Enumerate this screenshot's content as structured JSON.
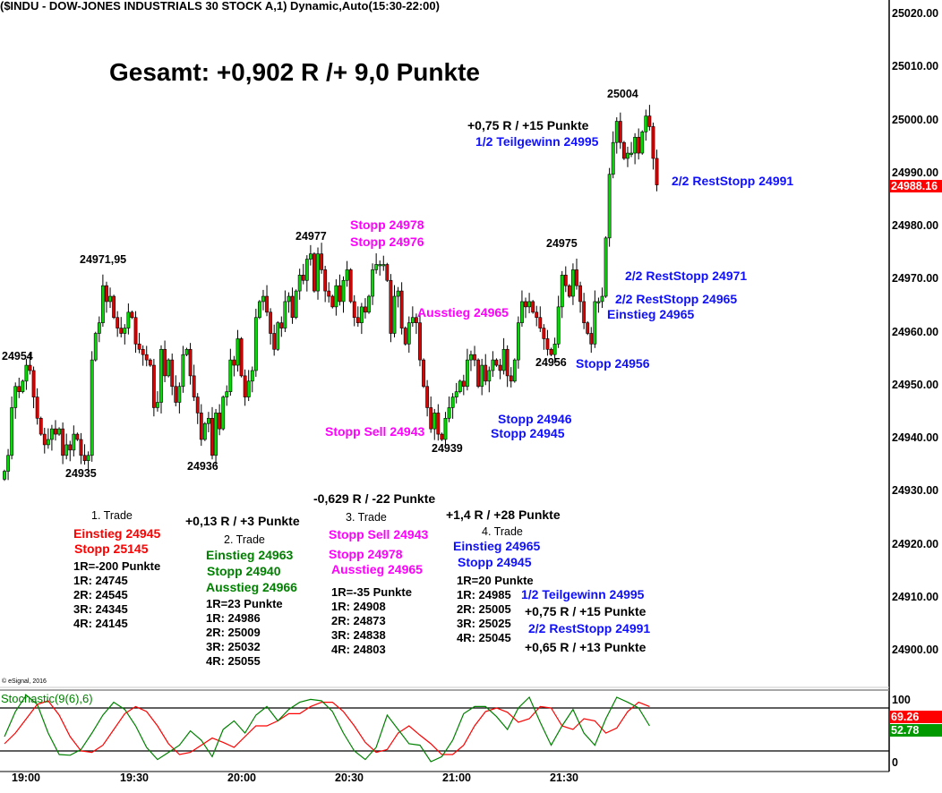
{
  "header": {
    "title": "($INDU - DOW-JONES INDUSTRIALS 30 STOCK A,1) Dynamic,Auto(15:30-22:00)"
  },
  "summary": "Gesamt: +0,902 R /+ 9,0 Punkte",
  "copyright": "© eSignal, 2016",
  "colors": {
    "up": "#00dd00",
    "down": "#e00000",
    "stoch_k": "#008000",
    "stoch_d": "#ff0000",
    "last_price_bg": "#ff0000",
    "k_badge_bg": "#009900"
  },
  "chart_labels": {
    "l24954": "24954",
    "l24935": "24935",
    "l24971": "24971,95",
    "l24936": "24936",
    "l24977": "24977",
    "stopp24978": "Stopp 24978",
    "stopp24976": "Stopp 24976",
    "ausstieg24965": "Ausstieg 24965",
    "stoppsell24943": "Stopp Sell 24943",
    "l24939": "24939",
    "stopp24946": "Stopp 24946",
    "stopp24945": "Stopp 24945",
    "l24956": "24956",
    "stopp24956": "Stopp 24956",
    "l24975": "24975",
    "einstieg24965": "Einstieg 24965",
    "rest24965": "2/2 RestStopp 24965",
    "rest24971": "2/2 RestStopp 24971",
    "rest24991": "2/2 RestStopp 24991",
    "l25004": "25004",
    "r075": "+0,75 R / +15 Punkte",
    "teil24995": "1/2 Teilgewinn 24995"
  },
  "trades": [
    {
      "title": "1. Trade",
      "result": "",
      "lines": [
        "Einstieg 24945",
        "Stopp 25145"
      ],
      "risk": "1R=-200 Punkte",
      "targets": [
        "1R: 24745",
        "2R: 24545",
        "3R: 24345",
        "4R: 24145"
      ]
    },
    {
      "title": "2. Trade",
      "result": "+0,13 R / +3 Punkte",
      "lines": [
        "Einstieg 24963",
        "Stopp 24940",
        "Ausstieg 24966"
      ],
      "risk": "1R=23 Punkte",
      "targets": [
        "1R: 24986",
        "2R: 25009",
        "3R: 25032",
        "4R: 25055"
      ]
    },
    {
      "title": "3. Trade",
      "result": "-0,629 R / -22 Punkte",
      "lines": [
        "Stopp Sell 24943",
        "Stopp 24978",
        "Ausstieg 24965"
      ],
      "risk": "1R=-35 Punkte",
      "targets": [
        "1R: 24908",
        "2R: 24873",
        "3R: 24838",
        "4R: 24803"
      ]
    },
    {
      "title": "4. Trade",
      "result": "+1,4 R / +28 Punkte",
      "lines": [
        "Einstieg 24965",
        "Stopp 24945"
      ],
      "risk": "1R=20 Punkte",
      "targets": [
        "1R: 24985",
        "2R: 25005",
        "3R: 25025",
        "4R: 25045"
      ],
      "exits": [
        "1/2 Teilgewinn 24995",
        "+0,75 R / +15 Punkte",
        "2/2 RestStopp 24991",
        "+0,65 R / +13 Punkte"
      ]
    }
  ],
  "chart_data": [
    {
      "type": "candlestick",
      "title": "($INDU - DOW-JONES INDUSTRIALS 30 STOCK A,1) Dynamic,Auto(15:30-22:00)",
      "interval_min": 1,
      "first_bar_time": "18:54",
      "x_ticks": [
        "19:00",
        "19:30",
        "20:00",
        "20:30",
        "21:00",
        "21:30"
      ],
      "y_ticks": [
        "25020.00",
        "25010.00",
        "25000.00",
        "24990.00",
        "24980.00",
        "24970.00",
        "24960.00",
        "24950.00",
        "24940.00",
        "24930.00",
        "24920.00",
        "24910.00",
        "24900.00"
      ],
      "ylim": [
        24899,
        25023
      ],
      "last_price": "24988.16",
      "closes": [
        24934,
        24937,
        24946,
        24950,
        24949,
        24951,
        24954,
        24953,
        24948,
        24944,
        24941,
        24939,
        24940,
        24942,
        24941,
        24942,
        24937,
        24939,
        24938,
        24941,
        24940,
        24937,
        24936,
        24937,
        24955,
        24960,
        24962,
        24969,
        24966,
        24967,
        24963,
        24961,
        24960,
        24961,
        24964,
        24963,
        24958,
        24957,
        24956,
        24955,
        24954,
        24946,
        24947,
        24957,
        24952,
        24955,
        24950,
        24947,
        24950,
        24956,
        24957,
        24952,
        24948,
        24945,
        24940,
        24943,
        24944,
        24937,
        24945,
        24942,
        24948,
        24949,
        24955,
        24954,
        24959,
        24952,
        24948,
        24951,
        24953,
        24963,
        24966,
        24967,
        24964,
        24960,
        24957,
        24962,
        24961,
        24966,
        24967,
        24963,
        24968,
        24971,
        24970,
        24974,
        24975,
        24968,
        24975,
        24972,
        24968,
        24967,
        24965,
        24969,
        24966,
        24970,
        24972,
        24966,
        24963,
        24962,
        24965,
        24964,
        24967,
        24972,
        24973,
        24973,
        24973,
        24970,
        24960,
        24967,
        24968,
        24961,
        24958,
        24962,
        24963,
        24962,
        24955,
        24950,
        24946,
        24942,
        24945,
        24941,
        24940,
        24944,
        24946,
        24948,
        24949,
        24951,
        24950,
        24955,
        24956,
        24955,
        24950,
        24954,
        24951,
        24953,
        24955,
        24954,
        24953,
        24957,
        24952,
        24951,
        24955,
        24962,
        24966,
        24965,
        24966,
        24964,
        24963,
        24961,
        24959,
        24957,
        24956,
        24958,
        24965,
        24971,
        24969,
        24967,
        24972,
        24969,
        24966,
        24962,
        24960,
        24958,
        24966,
        24966,
        24967,
        24978,
        24990,
        24996,
        25000,
        24996,
        24993,
        24994,
        24994,
        24997,
        24994,
        24998,
        25001,
        24999,
        24993,
        24988
      ],
      "grid": false
    },
    {
      "type": "line",
      "title": "Stochastic(9(6),6)",
      "interval_min": 3,
      "first_bar_time": "18:54",
      "y_ticks": [
        "100",
        "0"
      ],
      "ylim": [
        0,
        100
      ],
      "levels": [
        80,
        20
      ],
      "series": [
        {
          "name": "%K",
          "last": "52.78",
          "values": [
            40,
            75,
            98,
            85,
            45,
            15,
            14,
            22,
            45,
            70,
            88,
            78,
            55,
            25,
            8,
            18,
            28,
            48,
            35,
            12,
            50,
            62,
            45,
            70,
            82,
            62,
            78,
            88,
            92,
            90,
            75,
            45,
            20,
            8,
            25,
            70,
            50,
            30,
            28,
            5,
            12,
            35,
            72,
            82,
            82,
            68,
            50,
            80,
            95,
            60,
            28,
            55,
            78,
            45,
            28,
            65,
            95,
            88,
            80,
            55
          ]
        },
        {
          "name": "%D",
          "last": "69.26",
          "values": [
            30,
            45,
            65,
            85,
            90,
            70,
            40,
            20,
            18,
            28,
            50,
            72,
            82,
            75,
            55,
            30,
            15,
            18,
            28,
            38,
            32,
            25,
            40,
            55,
            55,
            62,
            72,
            72,
            82,
            88,
            88,
            75,
            55,
            32,
            18,
            22,
            45,
            55,
            42,
            30,
            15,
            15,
            28,
            55,
            75,
            80,
            74,
            60,
            65,
            82,
            80,
            55,
            50,
            65,
            62,
            45,
            52,
            75,
            88,
            82
          ]
        }
      ]
    }
  ]
}
